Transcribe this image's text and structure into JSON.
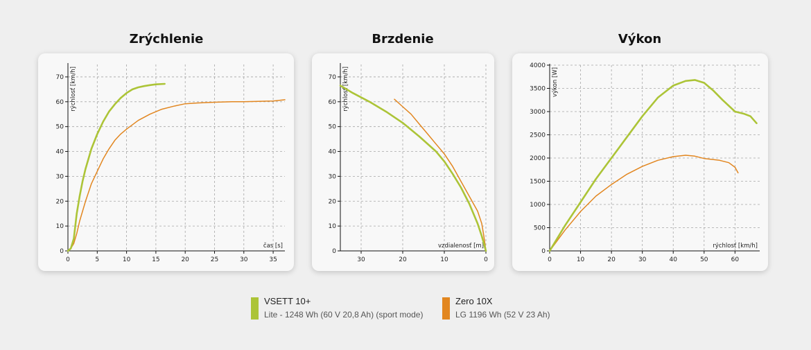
{
  "colors": {
    "vsett": "#acc437",
    "zero": "#e2861f"
  },
  "chart_data": [
    {
      "type": "line",
      "title": "Zrýchlenie",
      "xlabel": "čas [s]",
      "ylabel": "rýchlosť [km/h]",
      "xlim": [
        0,
        37
      ],
      "ylim": [
        0,
        75
      ],
      "xticks": [
        0,
        5,
        10,
        15,
        20,
        25,
        30,
        35
      ],
      "yticks": [
        0,
        10,
        20,
        30,
        40,
        50,
        60,
        70
      ],
      "grid": true,
      "series": [
        {
          "name": "VSETT 10+",
          "color": "#acc437",
          "x": [
            0,
            0.5,
            1,
            1.5,
            2,
            2.5,
            3,
            3.5,
            4,
            5,
            6,
            7,
            8,
            9,
            10,
            11,
            12,
            13,
            14,
            15,
            16.5
          ],
          "y": [
            0,
            1,
            5,
            15,
            22,
            28,
            33,
            37,
            41,
            47,
            52,
            56,
            59,
            61.5,
            63.5,
            65,
            65.8,
            66.3,
            66.7,
            67,
            67.2
          ]
        },
        {
          "name": "Zero 10X",
          "color": "#e2861f",
          "x": [
            0,
            0.5,
            1,
            1.5,
            2,
            3,
            4,
            5,
            6,
            7,
            8,
            9,
            10,
            12,
            14,
            16,
            18,
            20,
            22,
            25,
            28,
            30,
            33,
            35,
            37
          ],
          "y": [
            0,
            1,
            3,
            7,
            12,
            20,
            27,
            32,
            37,
            41,
            44.5,
            47,
            49,
            52.5,
            55,
            57,
            58.2,
            59.2,
            59.5,
            59.8,
            60,
            60,
            60.2,
            60.3,
            60.8
          ]
        }
      ]
    },
    {
      "type": "line",
      "title": "Brzdenie",
      "xlabel": "vzdialenosť [m]",
      "ylabel": "rýchlosť [km/h]",
      "xlim": [
        35,
        0
      ],
      "ylim": [
        0,
        75
      ],
      "xticks": [
        30,
        20,
        10,
        0
      ],
      "yticks": [
        0,
        10,
        20,
        30,
        40,
        50,
        60,
        70
      ],
      "grid": true,
      "series": [
        {
          "name": "VSETT 10+",
          "color": "#acc437",
          "x": [
            35,
            32,
            28,
            24,
            20,
            16,
            12,
            10,
            8,
            6,
            4,
            2,
            1,
            0.5,
            0
          ],
          "y": [
            66.5,
            63.5,
            60,
            56,
            51.5,
            46,
            40,
            36,
            31,
            25.5,
            19,
            11,
            6,
            3,
            0
          ]
        },
        {
          "name": "Zero 10X",
          "color": "#e2861f",
          "x": [
            22,
            20,
            18,
            16,
            14,
            12,
            10,
            8,
            6,
            4,
            2,
            1,
            0.5,
            0
          ],
          "y": [
            61,
            58,
            55,
            51,
            47,
            43,
            39,
            34,
            28,
            22,
            16,
            11,
            6,
            0
          ]
        }
      ]
    },
    {
      "type": "line",
      "title": "Výkon",
      "xlabel": "rýchlosť [km/h]",
      "ylabel": "výkon [W]",
      "xlim": [
        0,
        68
      ],
      "ylim": [
        0,
        4000
      ],
      "xticks": [
        0,
        10,
        20,
        30,
        40,
        50,
        60
      ],
      "yticks": [
        0,
        500,
        1000,
        1500,
        2000,
        2500,
        3000,
        3500,
        4000
      ],
      "grid": true,
      "series": [
        {
          "name": "VSETT 10+",
          "color": "#acc437",
          "x": [
            0,
            5,
            10,
            15,
            20,
            25,
            30,
            35,
            40,
            44,
            47,
            50,
            53,
            56,
            60,
            63,
            65,
            67
          ],
          "y": [
            0,
            550,
            1050,
            1550,
            2000,
            2450,
            2900,
            3300,
            3560,
            3660,
            3680,
            3620,
            3450,
            3250,
            3000,
            2950,
            2900,
            2750
          ]
        },
        {
          "name": "Zero 10X",
          "color": "#e2861f",
          "x": [
            0,
            5,
            10,
            15,
            20,
            25,
            30,
            35,
            40,
            44,
            47,
            50,
            55,
            58,
            60,
            61
          ],
          "y": [
            0,
            450,
            850,
            1180,
            1430,
            1650,
            1820,
            1950,
            2030,
            2060,
            2040,
            1990,
            1950,
            1900,
            1800,
            1680
          ]
        }
      ]
    }
  ],
  "legend": [
    {
      "name": "VSETT 10+",
      "desc": "Lite - 1248 Wh (60 V 20,8 Ah) (sport mode)",
      "color": "#acc437"
    },
    {
      "name": "Zero 10X",
      "desc": "LG 1196 Wh (52 V 23 Ah)",
      "color": "#e2861f"
    }
  ]
}
